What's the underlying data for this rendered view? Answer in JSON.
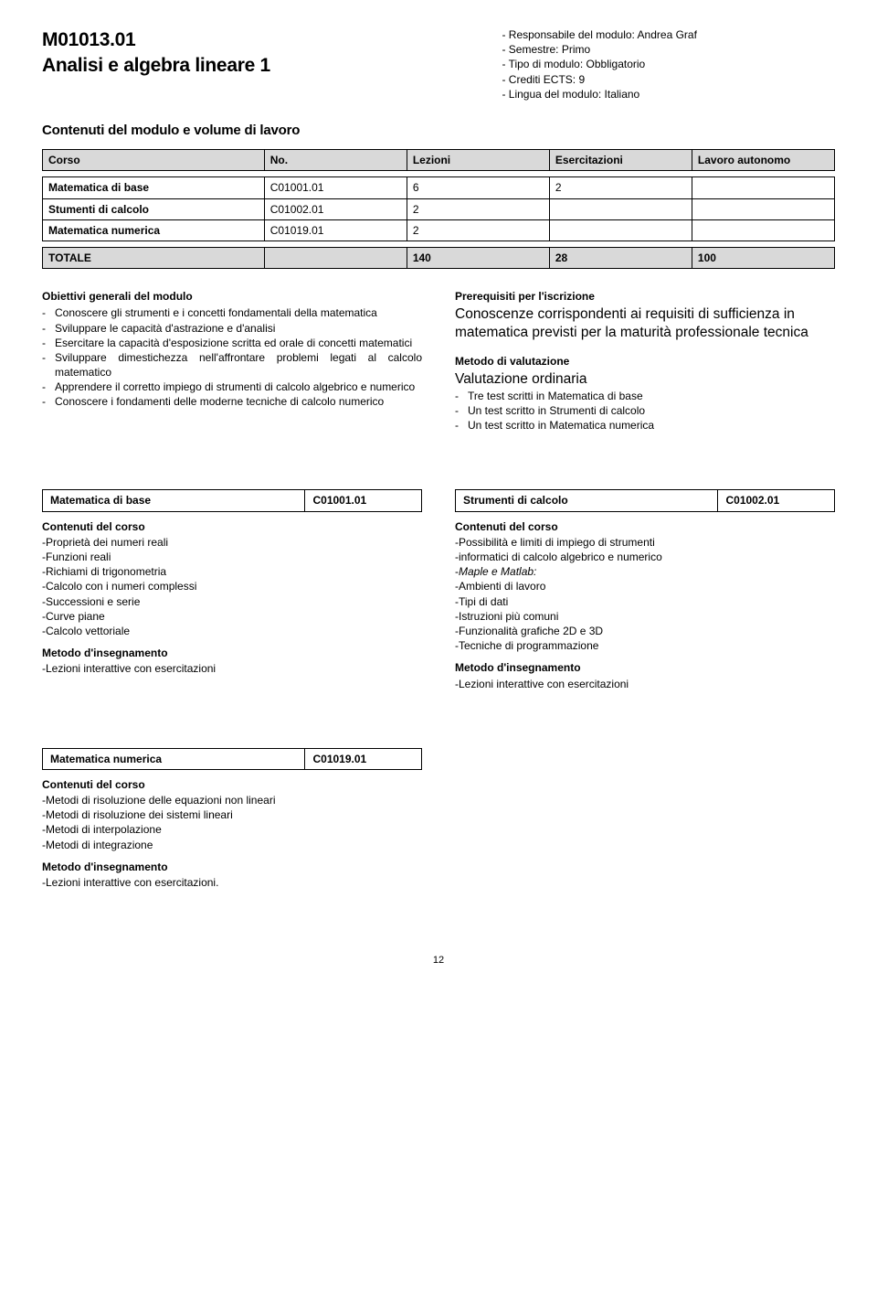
{
  "header": {
    "code": "M01013.01",
    "name": "Analisi e algebra lineare 1",
    "meta": [
      "Responsabile del modulo: Andrea Graf",
      "Semestre: Primo",
      "Tipo di modulo: Obbligatorio",
      "Crediti ECTS: 9",
      "Lingua del modulo: Italiano"
    ]
  },
  "section_title": "Contenuti del modulo e volume di lavoro",
  "table": {
    "headers": {
      "corso": "Corso",
      "no": "No.",
      "lez": "Lezioni",
      "ese": "Esercitazioni",
      "lav": "Lavoro autonomo"
    },
    "rows": [
      {
        "name": "Matematica di base",
        "no": "C01001.01",
        "lez": "6",
        "ese": "2",
        "lav": ""
      },
      {
        "name": "Stumenti di calcolo",
        "no": "C01002.01",
        "lez": "2",
        "ese": "",
        "lav": ""
      },
      {
        "name": "Matematica numerica",
        "no": "C01019.01",
        "lez": "2",
        "ese": "",
        "lav": ""
      }
    ],
    "total": {
      "label": "TOTALE",
      "lez": "140",
      "ese": "28",
      "lav": "100"
    }
  },
  "objectives": {
    "title": "Obiettivi generali del modulo",
    "items": [
      "Conoscere gli strumenti e i concetti fondamentali della matematica",
      "Sviluppare le capacità d'astrazione e d'analisi",
      "Esercitare la capacità d'esposizione scritta ed orale di concetti matematici",
      "Sviluppare dimestichezza nell'affrontare problemi legati al calcolo matematico",
      "Apprendere il corretto impiego di strumenti di calcolo algebrico e numerico",
      "Conoscere i fondamenti delle moderne tecniche di calcolo numerico"
    ]
  },
  "prereq": {
    "title": "Prerequisiti per l'iscrizione",
    "text": "Conoscenze corrispondenti ai requisiti di sufficienza in matematica previsti per la maturità professionale tecnica"
  },
  "evaluation": {
    "title": "Metodo di valutazione",
    "subtitle": "Valutazione ordinaria",
    "items": [
      "Tre test scritti in Matematica di base",
      "Un test scritto in Strumenti di calcolo",
      "Un test scritto in Matematica numerica"
    ]
  },
  "courses": {
    "c1": {
      "name": "Matematica di base",
      "code": "C01001.01",
      "content_title": "Contenuti del corso",
      "content": [
        "Proprietà dei numeri reali",
        "Funzioni reali",
        "Richiami di trigonometria",
        "Calcolo con i numeri complessi",
        "Successioni e serie",
        "Curve piane",
        "Calcolo vettoriale"
      ],
      "method_title": "Metodo d'insegnamento",
      "method": [
        "Lezioni interattive con esercitazioni"
      ]
    },
    "c2": {
      "name": "Strumenti di calcolo",
      "code": "C01002.01",
      "content_title": "Contenuti del corso",
      "content": [
        "Possibilità e limiti di impiego di strumenti",
        "informatici di calcolo algebrico e numerico",
        "Maple e Matlab:",
        "Ambienti di lavoro",
        "Tipi di dati",
        "Istruzioni più comuni",
        "Funzionalità grafiche 2D e 3D",
        "Tecniche di programmazione"
      ],
      "method_title": "Metodo d'insegnamento",
      "method": [
        "Lezioni interattive con esercitazioni"
      ]
    },
    "c3": {
      "name": "Matematica numerica",
      "code": "C01019.01",
      "content_title": "Contenuti del corso",
      "content": [
        "Metodi di risoluzione delle equazioni non lineari",
        "Metodi di risoluzione dei sistemi lineari",
        "Metodi di interpolazione",
        "Metodi di integrazione"
      ],
      "method_title": "Metodo d'insegnamento",
      "method": [
        "Lezioni interattive con esercitazioni."
      ]
    }
  },
  "italic_key": "Maple e Matlab:",
  "page_number": "12"
}
